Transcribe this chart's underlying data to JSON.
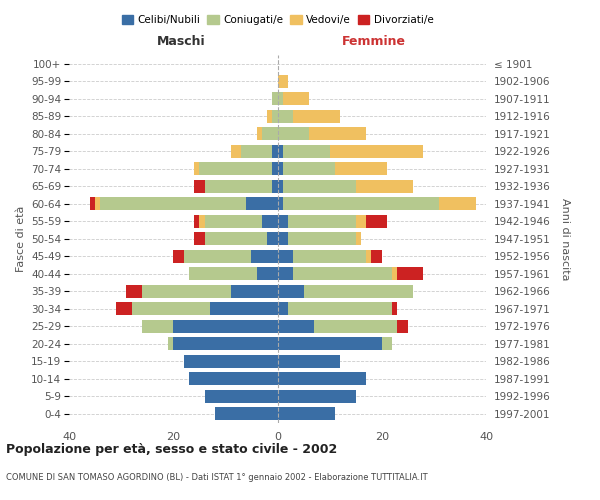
{
  "age_groups": [
    "100+",
    "95-99",
    "90-94",
    "85-89",
    "80-84",
    "75-79",
    "70-74",
    "65-69",
    "60-64",
    "55-59",
    "50-54",
    "45-49",
    "40-44",
    "35-39",
    "30-34",
    "25-29",
    "20-24",
    "15-19",
    "10-14",
    "5-9",
    "0-4"
  ],
  "birth_years": [
    "≤ 1901",
    "1902-1906",
    "1907-1911",
    "1912-1916",
    "1917-1921",
    "1922-1926",
    "1927-1931",
    "1932-1936",
    "1937-1941",
    "1942-1946",
    "1947-1951",
    "1952-1956",
    "1957-1961",
    "1962-1966",
    "1967-1971",
    "1972-1976",
    "1977-1981",
    "1982-1986",
    "1987-1991",
    "1992-1996",
    "1997-2001"
  ],
  "colors": {
    "celibi": "#3a6ea5",
    "coniugati": "#b5c98e",
    "vedovi": "#f0c060",
    "divorziati": "#cc2222"
  },
  "males": {
    "celibi": [
      0,
      0,
      0,
      0,
      0,
      1,
      1,
      1,
      6,
      3,
      2,
      5,
      4,
      9,
      13,
      20,
      20,
      18,
      17,
      14,
      12
    ],
    "coniugati": [
      0,
      0,
      1,
      1,
      3,
      6,
      14,
      13,
      28,
      11,
      12,
      13,
      13,
      17,
      15,
      6,
      1,
      0,
      0,
      0,
      0
    ],
    "vedovi": [
      0,
      0,
      0,
      1,
      1,
      2,
      1,
      0,
      1,
      1,
      0,
      0,
      0,
      0,
      0,
      0,
      0,
      0,
      0,
      0,
      0
    ],
    "divorziati": [
      0,
      0,
      0,
      0,
      0,
      0,
      0,
      2,
      1,
      1,
      2,
      2,
      0,
      3,
      3,
      0,
      0,
      0,
      0,
      0,
      0
    ]
  },
  "females": {
    "celibi": [
      0,
      0,
      0,
      0,
      0,
      1,
      1,
      1,
      1,
      2,
      2,
      3,
      3,
      5,
      2,
      7,
      20,
      12,
      17,
      15,
      11
    ],
    "coniugati": [
      0,
      0,
      1,
      3,
      6,
      9,
      10,
      14,
      30,
      13,
      13,
      14,
      19,
      21,
      20,
      16,
      2,
      0,
      0,
      0,
      0
    ],
    "vedovi": [
      0,
      2,
      5,
      9,
      11,
      18,
      10,
      11,
      7,
      2,
      1,
      1,
      1,
      0,
      0,
      0,
      0,
      0,
      0,
      0,
      0
    ],
    "divorziati": [
      0,
      0,
      0,
      0,
      0,
      0,
      0,
      0,
      0,
      4,
      0,
      2,
      5,
      0,
      1,
      2,
      0,
      0,
      0,
      0,
      0
    ]
  },
  "xlim": 40,
  "title": "Popolazione per età, sesso e stato civile - 2002",
  "subtitle": "COMUNE DI SAN TOMASO AGORDINO (BL) - Dati ISTAT 1° gennaio 2002 - Elaborazione TUTTITALIA.IT",
  "legend_labels": [
    "Celibi/Nubili",
    "Coniugati/e",
    "Vedovi/e",
    "Divorziati/e"
  ],
  "xlabel_left": "Maschi",
  "xlabel_right": "Femmine",
  "ylabel_left": "Fasce di età",
  "ylabel_right": "Anni di nascita",
  "background": "#ffffff",
  "grid_color": "#cccccc",
  "bar_height": 0.75
}
